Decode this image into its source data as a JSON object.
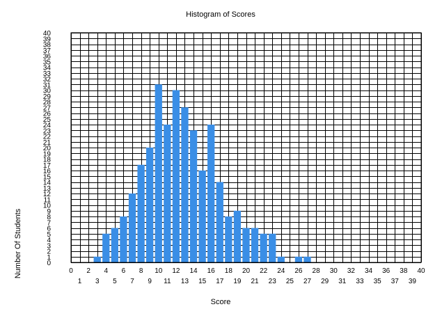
{
  "chart_data": {
    "type": "bar",
    "title": "Histogram of Scores",
    "xlabel": "Score",
    "ylabel": "Number Of Students",
    "xlim": [
      0,
      40
    ],
    "ylim": [
      0,
      40
    ],
    "grid": true,
    "bar_color": "#3a8ee6",
    "x": [
      3,
      4,
      5,
      6,
      7,
      8,
      9,
      10,
      11,
      12,
      13,
      14,
      15,
      16,
      17,
      18,
      19,
      20,
      21,
      22,
      23,
      24,
      26,
      27
    ],
    "values": [
      1,
      5,
      6,
      8,
      12,
      17,
      20,
      31,
      24,
      30,
      27,
      23,
      16,
      24,
      14,
      8,
      9,
      6,
      6,
      5,
      5,
      1,
      1,
      1
    ]
  }
}
